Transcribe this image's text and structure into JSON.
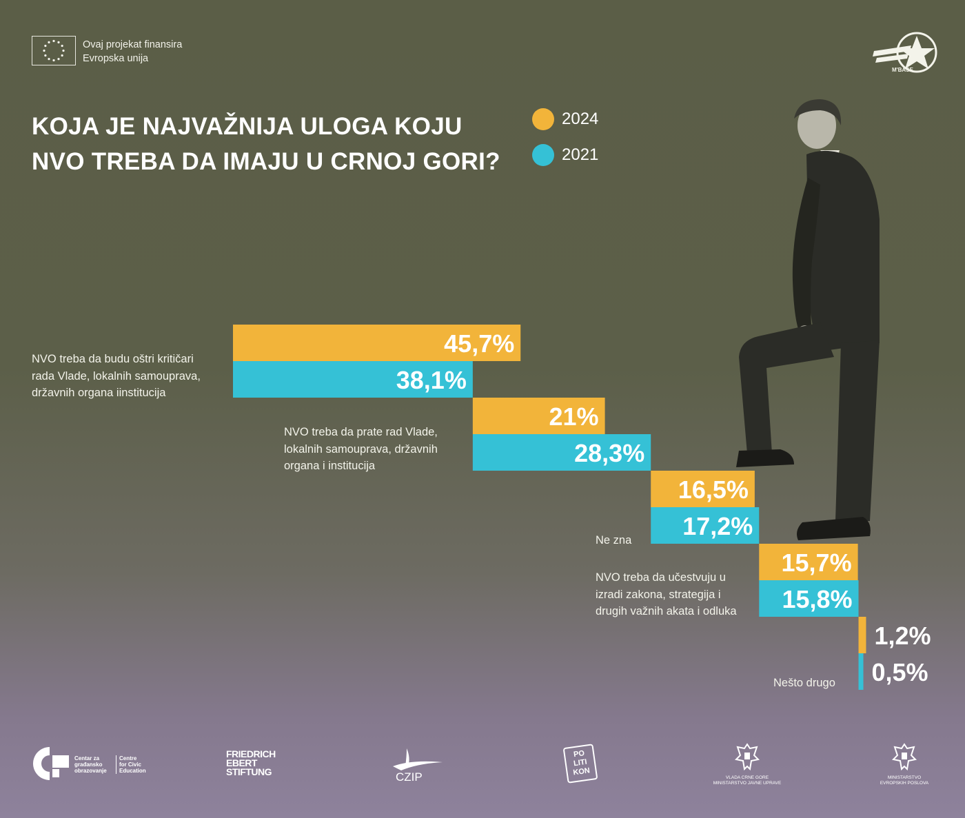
{
  "header": {
    "eu_text_line1": "Ovaj projekat finansira",
    "eu_text_line2": "Evropska unija",
    "mbase_logo_text": "M'BASE"
  },
  "title": {
    "line1": "KOJA JE NAJVAŽNIJA ULOGA KOJU",
    "line2": "NVO TREBA DA IMAJU U CRNOJ GORI?"
  },
  "colors": {
    "series_2024": "#f2b43a",
    "series_2021": "#35c1d6",
    "background": "#5b5e47"
  },
  "chart_data": {
    "type": "bar",
    "orientation": "horizontal",
    "layout": "staircase",
    "title": "KOJA JE NAJVAŽNIJA ULOGA KOJU NVO TREBA DA IMAJU U CRNOJ GORI?",
    "categories": [
      "NVO treba da budu oštri kritičari rada Vlade, lokalnih samouprava, državnih organa iinstitucija",
      "NVO treba da prate rad Vlade, lokalnih samouprava, državnih organa i institucija",
      "Ne zna",
      "NVO treba da učestvuju u izradi zakona, strategija i drugih važnih akata i odluka",
      "Nešto drugo"
    ],
    "category_label_lines": [
      [
        "NVO treba da budu oštri kritičari",
        "rada Vlade, lokalnih samouprava,",
        "državnih organa iinstitucija"
      ],
      [
        "NVO treba da prate rad Vlade,",
        "lokalnih samouprava, državnih",
        "organa i institucija"
      ],
      [
        "Ne zna"
      ],
      [
        "NVO treba da učestvuju u",
        "izradi zakona, strategija i",
        "drugih važnih akata i odluka"
      ],
      [
        "Nešto drugo"
      ]
    ],
    "series": [
      {
        "name": "2024",
        "values": [
          45.7,
          21,
          16.5,
          15.7,
          1.2
        ],
        "labels": [
          "45,7%",
          "21%",
          "16,5%",
          "15,7%",
          "1,2%"
        ]
      },
      {
        "name": "2021",
        "values": [
          38.1,
          28.3,
          17.2,
          15.8,
          0.5
        ],
        "labels": [
          "38,1%",
          "28,3%",
          "17,2%",
          "15,8%",
          "0,5%"
        ]
      }
    ],
    "legend": [
      "2024",
      "2021"
    ],
    "legend_position": "top-right",
    "xlabel": "",
    "ylabel": "",
    "unit": "%"
  },
  "footer": {
    "cge_line1": "Centar za",
    "cge_line2": "građansko",
    "cge_line3": "obrazovanje",
    "cge_en_line1": "Centre",
    "cge_en_line2": "for Civic",
    "cge_en_line3": "Education",
    "fes_line1": "FRIEDRICH",
    "fes_line2": "EBERT",
    "fes_line3": "STIFTUNG",
    "czip": "CZIP",
    "politikon_line1": "PO",
    "politikon_line2": "LITI",
    "politikon_line3": "KON",
    "gov1_line1": "VLADA CRNE GORE",
    "gov1_line2": "MINISTARSTVO JAVNE UPRAVE",
    "gov2_line1": "MINISTARSTVO",
    "gov2_line2": "EVROPSKIH POSLOVA"
  }
}
